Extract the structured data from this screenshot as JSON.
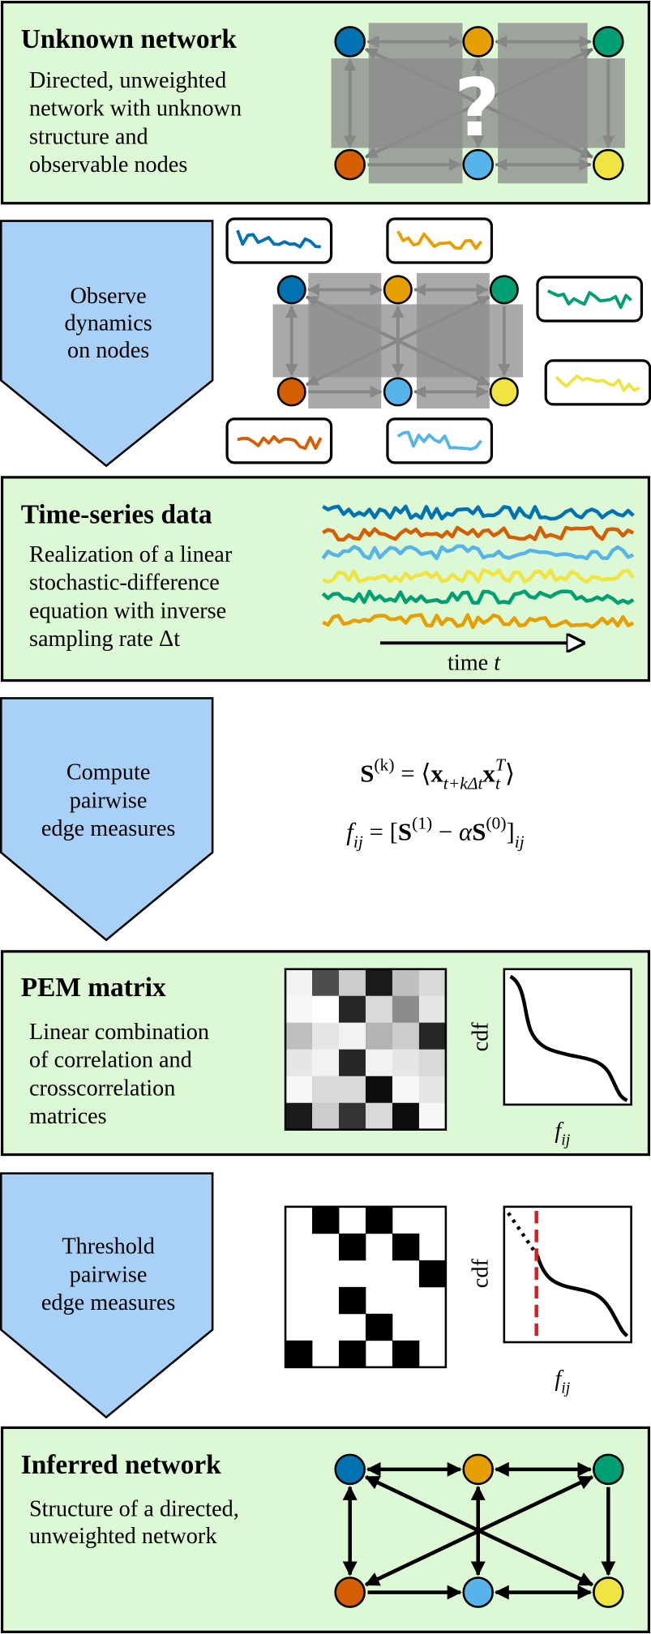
{
  "unknown_network": {
    "title": "Unknown network",
    "lines": [
      "Directed, unweighted",
      "network with unknown",
      "structure and",
      "observable nodes"
    ],
    "overlay": "?"
  },
  "observe_step": {
    "lines": [
      "Observe",
      "dynamics",
      "on nodes"
    ]
  },
  "time_series": {
    "title": "Time-series data",
    "lines": [
      "Realization of a linear",
      "stochastic-difference",
      "equation with inverse",
      "sampling rate Δt"
    ],
    "axis_label": [
      {
        "text": "time "
      },
      {
        "text": "t",
        "style": "italic"
      }
    ]
  },
  "compute_step": {
    "lines": [
      "Compute",
      "pairwise",
      "edge measures"
    ],
    "formulas": [
      [
        {
          "text": "S",
          "style": "bold"
        },
        {
          "text": "(k)",
          "style": "sup"
        },
        {
          "text": " = ⟨"
        },
        {
          "text": "x",
          "style": "bold"
        },
        {
          "text": "t+kΔt",
          "style": "sub italic"
        },
        {
          "text": "x",
          "style": "bold"
        },
        {
          "text": "t",
          "style": "sub italic"
        },
        {
          "text": "T",
          "style": "supover italic"
        },
        {
          "text": "⟩"
        }
      ],
      [
        {
          "text": "f",
          "style": "italic"
        },
        {
          "text": "ij",
          "style": "sub italic"
        },
        {
          "text": " = ["
        },
        {
          "text": "S",
          "style": "bold"
        },
        {
          "text": "(1)",
          "style": "sup"
        },
        {
          "text": " − "
        },
        {
          "text": "α",
          "style": "italic"
        },
        {
          "text": "S",
          "style": "bold"
        },
        {
          "text": "(0)",
          "style": "sup"
        },
        {
          "text": "]"
        },
        {
          "text": "ij",
          "style": "sub italic"
        }
      ]
    ]
  },
  "pem_matrix": {
    "title": "PEM matrix",
    "lines": [
      "Linear combination",
      "of correlation and",
      "crosscorrelation",
      "matrices"
    ],
    "cdf_label": "cdf",
    "x_label": [
      {
        "text": "f",
        "style": "italic"
      },
      {
        "text": "ij",
        "style": "sub italic"
      }
    ]
  },
  "threshold_step": {
    "lines": [
      "Threshold",
      "pairwise",
      "edge measures"
    ],
    "cdf_label": "cdf",
    "x_label": [
      {
        "text": "f",
        "style": "italic"
      },
      {
        "text": "ij",
        "style": "sub italic"
      }
    ]
  },
  "inferred_network": {
    "title": "Inferred network",
    "lines": [
      "Structure of a directed,",
      "unweighted network"
    ]
  }
}
